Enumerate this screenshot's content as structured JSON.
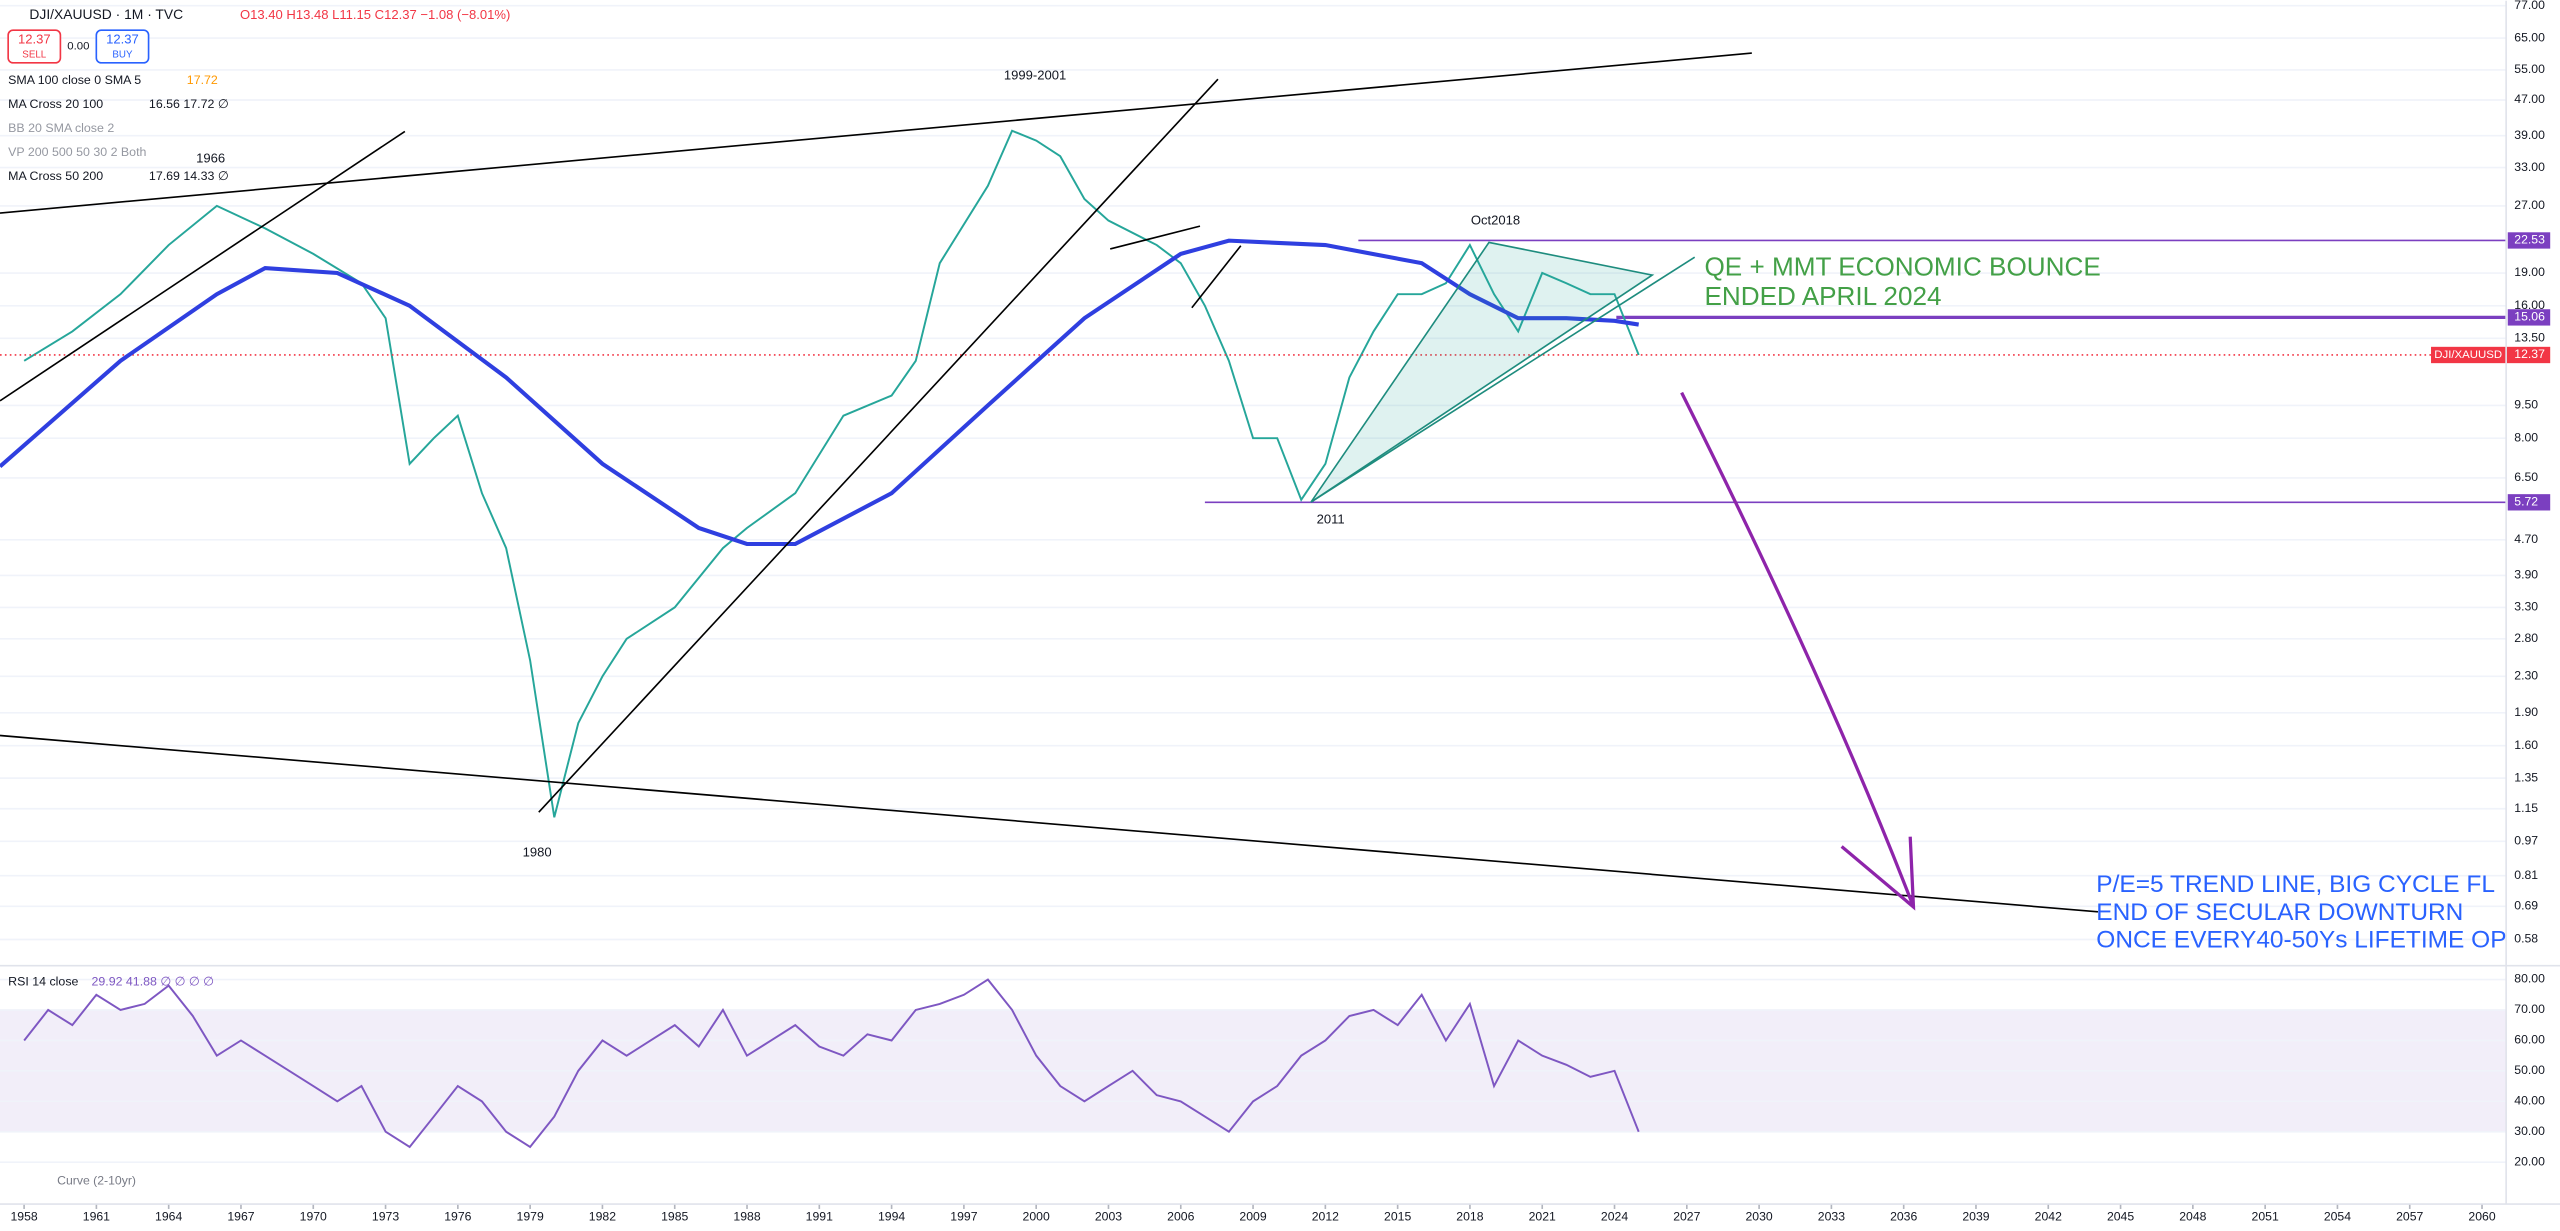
{
  "header": {
    "symbol": "DJI/XAUUSD · 1M · TVC",
    "ohlc": "O13.40 H13.48 L11.15 C12.37 −1.08 (−8.01%)",
    "sell_price": "12.37",
    "sell_label": "SELL",
    "spread": "0.00",
    "buy_price": "12.37",
    "buy_label": "BUY"
  },
  "indicators": [
    {
      "name": "SMA 100 close 0 SMA 5",
      "values": "17.72"
    },
    {
      "name": "MA Cross 20 100",
      "values": "16.56 17.72 ∅"
    },
    {
      "name": "BB 20 SMA close 2",
      "values": ""
    },
    {
      "name": "VP 200 500 50 30 2 Both",
      "values": ""
    },
    {
      "name": "MA Cross 50 200",
      "values": "17.69 14.33 ∅"
    }
  ],
  "annotations": {
    "top": "1999-2001",
    "oct2018": "Oct2018",
    "y1966": "1966",
    "y2011": "2011",
    "y1980": "1980",
    "qe1": "QE + MMT ECONOMIC BOUNCE",
    "qe2": "ENDED APRIL 2024",
    "pe1": "P/E=5 TREND LINE, BIG CYCLE FL",
    "pe2": "END OF SECULAR DOWNTURN",
    "pe3": "ONCE EVERY40-50Ys LIFETIME OP",
    "curve": "Curve (2-10yr)"
  },
  "chart_data": [
    {
      "type": "line",
      "log_scale": true,
      "xlim": [
        1957,
        2061
      ],
      "ylim": [
        0.51,
        79
      ],
      "series": [
        {
          "name": "DJI/XAUUSD",
          "color": "#26a69a",
          "x": [
            1958,
            1960,
            1962,
            1964,
            1966,
            1968,
            1970,
            1972,
            1973,
            1974,
            1975,
            1976,
            1977,
            1978,
            1979,
            1980,
            1981,
            1982,
            1983,
            1985,
            1987,
            1988,
            1990,
            1992,
            1994,
            1995,
            1996,
            1998,
            1999,
            2000,
            2001,
            2002,
            2003,
            2005,
            2006,
            2007,
            2008,
            2009,
            2010,
            2011,
            2012,
            2013,
            2014,
            2015,
            2016,
            2017,
            2018,
            2019,
            2020,
            2021,
            2022,
            2023,
            2024,
            2025
          ],
          "values": [
            12,
            14,
            17,
            22,
            27,
            24,
            21,
            18,
            15,
            7,
            8,
            9,
            6,
            4.5,
            2.5,
            1.1,
            1.8,
            2.3,
            2.8,
            3.3,
            4.5,
            5,
            6,
            9,
            10,
            12,
            20,
            30,
            40,
            38,
            35,
            28,
            25,
            22,
            20,
            16,
            12,
            8,
            8,
            5.8,
            7,
            11,
            14,
            17,
            17,
            18,
            22,
            17,
            14,
            19,
            18,
            17,
            17,
            12.37
          ]
        },
        {
          "color": "#2f3fe0",
          "x": [
            1957,
            1962,
            1966,
            1968,
            1971,
            1974,
            1978,
            1982,
            1986,
            1988,
            1990,
            1994,
            1998,
            2002,
            2006,
            2008,
            2012,
            2016,
            2018,
            2020,
            2022,
            2024,
            2025
          ],
          "values": [
            6.9,
            12,
            17,
            19.5,
            19,
            16,
            11,
            7,
            5,
            4.6,
            4.6,
            6,
            9.5,
            15,
            21,
            22.5,
            22,
            20,
            17,
            15,
            15,
            14.8,
            14.5
          ]
        }
      ],
      "levels": [
        {
          "value": 22.53,
          "color": "#7b3fc0"
        },
        {
          "value": 15.06,
          "color": "#7b3fc0"
        },
        {
          "value": 5.72,
          "color": "#7b3fc0"
        }
      ],
      "yticks": [
        {
          "value": 77,
          "label": "77.00"
        },
        {
          "value": 65,
          "label": "65.00"
        },
        {
          "value": 55,
          "label": "55.00"
        },
        {
          "value": 47,
          "label": "47.00"
        },
        {
          "value": 39,
          "label": "39.00"
        },
        {
          "value": 33,
          "label": "33.00"
        },
        {
          "value": 27,
          "label": "27.00"
        },
        {
          "value": 19,
          "label": "19.00"
        },
        {
          "value": 16,
          "label": "16.00"
        },
        {
          "value": 13.5,
          "label": "13.50"
        },
        {
          "value": 9.5,
          "label": "9.50"
        },
        {
          "value": 8,
          "label": "8.00"
        },
        {
          "value": 6.5,
          "label": "6.50"
        },
        {
          "value": 4.7,
          "label": "4.70"
        },
        {
          "value": 3.9,
          "label": "3.90"
        },
        {
          "value": 3.3,
          "label": "3.30"
        },
        {
          "value": 2.8,
          "label": "2.80"
        },
        {
          "value": 2.3,
          "label": "2.30"
        },
        {
          "value": 1.9,
          "label": "1.90"
        },
        {
          "value": 1.6,
          "label": "1.60"
        },
        {
          "value": 1.35,
          "label": "1.35"
        },
        {
          "value": 1.15,
          "label": "1.15"
        },
        {
          "value": 0.97,
          "label": "0.97"
        },
        {
          "value": 0.81,
          "label": "0.81"
        },
        {
          "value": 0.69,
          "label": "0.69"
        },
        {
          "value": 0.58,
          "label": "0.58"
        }
      ],
      "xticks": [
        1958,
        1961,
        1964,
        1967,
        1970,
        1973,
        1976,
        1979,
        1982,
        1985,
        1988,
        1991,
        1994,
        1997,
        2000,
        2003,
        2006,
        2009,
        2012,
        2015,
        2018,
        2021,
        2024,
        2027,
        2030,
        2033,
        2036,
        2039,
        2042,
        2045,
        2048,
        2051,
        2054,
        2057,
        2060
      ]
    },
    {
      "type": "line",
      "title": "RSI 14 close",
      "readout": "29.92 41.88 ∅ ∅ ∅ ∅",
      "xlim": [
        1957,
        2061
      ],
      "ylim": [
        10,
        84
      ],
      "band": [
        30,
        70
      ],
      "series": [
        {
          "color": "#7e57c2",
          "x": [
            1958,
            1959,
            1960,
            1961,
            1962,
            1963,
            1964,
            1965,
            1966,
            1967,
            1968,
            1969,
            1970,
            1971,
            1972,
            1973,
            1974,
            1975,
            1976,
            1977,
            1978,
            1979,
            1980,
            1981,
            1982,
            1983,
            1984,
            1985,
            1986,
            1987,
            1988,
            1989,
            1990,
            1991,
            1992,
            1993,
            1994,
            1995,
            1996,
            1997,
            1998,
            1999,
            2000,
            2001,
            2002,
            2003,
            2004,
            2005,
            2006,
            2007,
            2008,
            2009,
            2010,
            2011,
            2012,
            2013,
            2014,
            2015,
            2016,
            2017,
            2018,
            2019,
            2020,
            2021,
            2022,
            2023,
            2024,
            2025
          ],
          "values": [
            60,
            70,
            65,
            75,
            70,
            72,
            78,
            68,
            55,
            60,
            55,
            50,
            45,
            40,
            45,
            30,
            25,
            35,
            45,
            40,
            30,
            25,
            35,
            50,
            60,
            55,
            60,
            65,
            58,
            70,
            55,
            60,
            65,
            58,
            55,
            62,
            60,
            70,
            72,
            75,
            80,
            70,
            55,
            45,
            40,
            45,
            50,
            42,
            40,
            35,
            30,
            40,
            45,
            55,
            60,
            68,
            70,
            65,
            75,
            60,
            72,
            45,
            60,
            55,
            52,
            48,
            50,
            30
          ]
        }
      ],
      "yticks": [
        {
          "value": 80,
          "label": "80.00"
        },
        {
          "value": 70,
          "label": "70.00"
        },
        {
          "value": 60,
          "label": "60.00"
        },
        {
          "value": 50,
          "label": "50.00"
        },
        {
          "value": 40,
          "label": "40.00"
        },
        {
          "value": 30,
          "label": "30.00"
        },
        {
          "value": 20,
          "label": "20.00"
        }
      ]
    }
  ]
}
